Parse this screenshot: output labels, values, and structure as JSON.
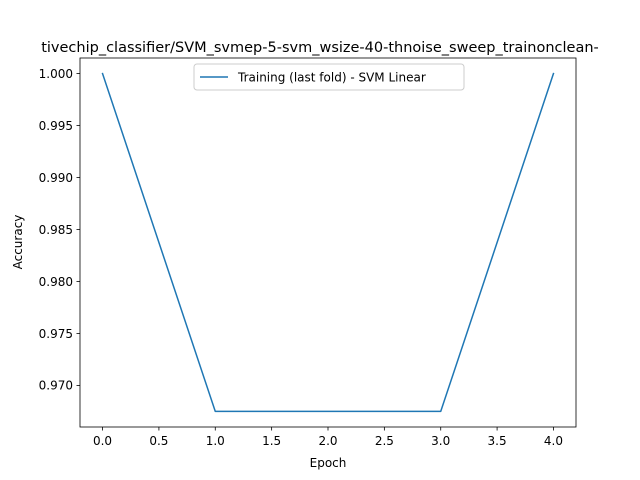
{
  "chart_data": {
    "type": "line",
    "title": "tivechip_classifier/SVM_svmep-5-svm_wsize-40-thnoise_sweep_trainonclean-",
    "xlabel": "Epoch",
    "ylabel": "Accuracy",
    "xlim": [
      -0.2,
      4.2
    ],
    "ylim": [
      0.966,
      1.0015
    ],
    "x_ticks": [
      0.0,
      0.5,
      1.0,
      1.5,
      2.0,
      2.5,
      3.0,
      3.5,
      4.0
    ],
    "x_tick_labels": [
      "0.0",
      "0.5",
      "1.0",
      "1.5",
      "2.0",
      "2.5",
      "3.0",
      "3.5",
      "4.0"
    ],
    "y_ticks": [
      0.97,
      0.975,
      0.98,
      0.985,
      0.99,
      0.995,
      1.0
    ],
    "y_tick_labels": [
      "0.970",
      "0.975",
      "0.980",
      "0.985",
      "0.990",
      "0.995",
      "1.000"
    ],
    "grid": false,
    "legend_position": "top-center",
    "series": [
      {
        "name": "Training (last fold) - SVM Linear",
        "color": "#1f77b4",
        "x": [
          0,
          1,
          2,
          3,
          4
        ],
        "y": [
          1.0,
          0.9675,
          0.9675,
          0.9675,
          1.0
        ]
      }
    ]
  }
}
